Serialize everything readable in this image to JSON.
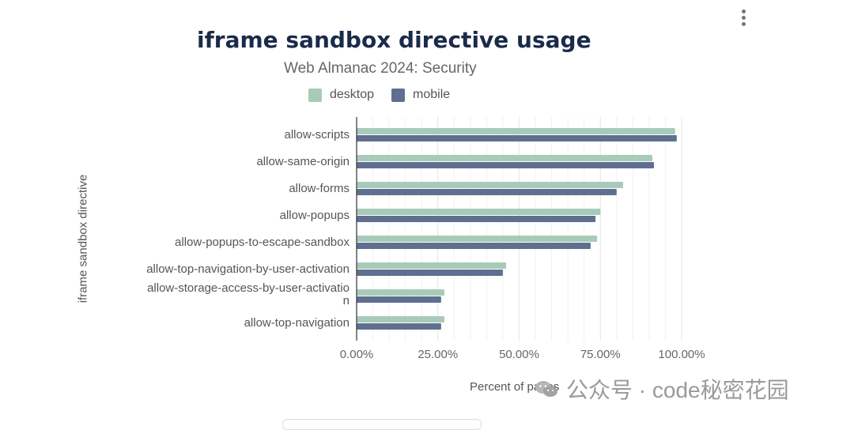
{
  "menu": {
    "icon": "kebab-menu-icon"
  },
  "watermark": {
    "icon": "wechat-icon",
    "text": "公众号 · code秘密花园"
  },
  "colors": {
    "desktop": "#a8cbb9",
    "mobile": "#5f6f8f",
    "title": "#1a2b4a"
  },
  "chart_data": {
    "type": "bar",
    "orientation": "horizontal",
    "title": "iframe sandbox directive usage",
    "subtitle": "Web Almanac 2024: Security",
    "xlabel": "Percent of pages",
    "ylabel": "iframe sandbox directive",
    "xlim": [
      0,
      100
    ],
    "x_ticks": [
      "0.00%",
      "25.00%",
      "50.00%",
      "75.00%",
      "100.00%"
    ],
    "x_tick_values": [
      0,
      25,
      50,
      75,
      100
    ],
    "grid": true,
    "legend_position": "top",
    "categories": [
      [
        "allow-scripts"
      ],
      [
        "allow-same-origin"
      ],
      [
        "allow-forms"
      ],
      [
        "allow-popups"
      ],
      [
        "allow-popups-to-escape-sandbox"
      ],
      [
        "allow-top-navigation-by-user-activation"
      ],
      [
        "allow-storage-access-by-user-activatio",
        "n"
      ],
      [
        "allow-top-navigation"
      ]
    ],
    "series": [
      {
        "name": "desktop",
        "color": "#a8cbb9",
        "values": [
          98.0,
          91.0,
          82.0,
          75.0,
          74.0,
          46.0,
          27.0,
          27.0
        ]
      },
      {
        "name": "mobile",
        "color": "#5f6f8f",
        "values": [
          98.5,
          91.5,
          80.0,
          73.5,
          72.0,
          45.0,
          26.0,
          26.0
        ]
      }
    ]
  }
}
